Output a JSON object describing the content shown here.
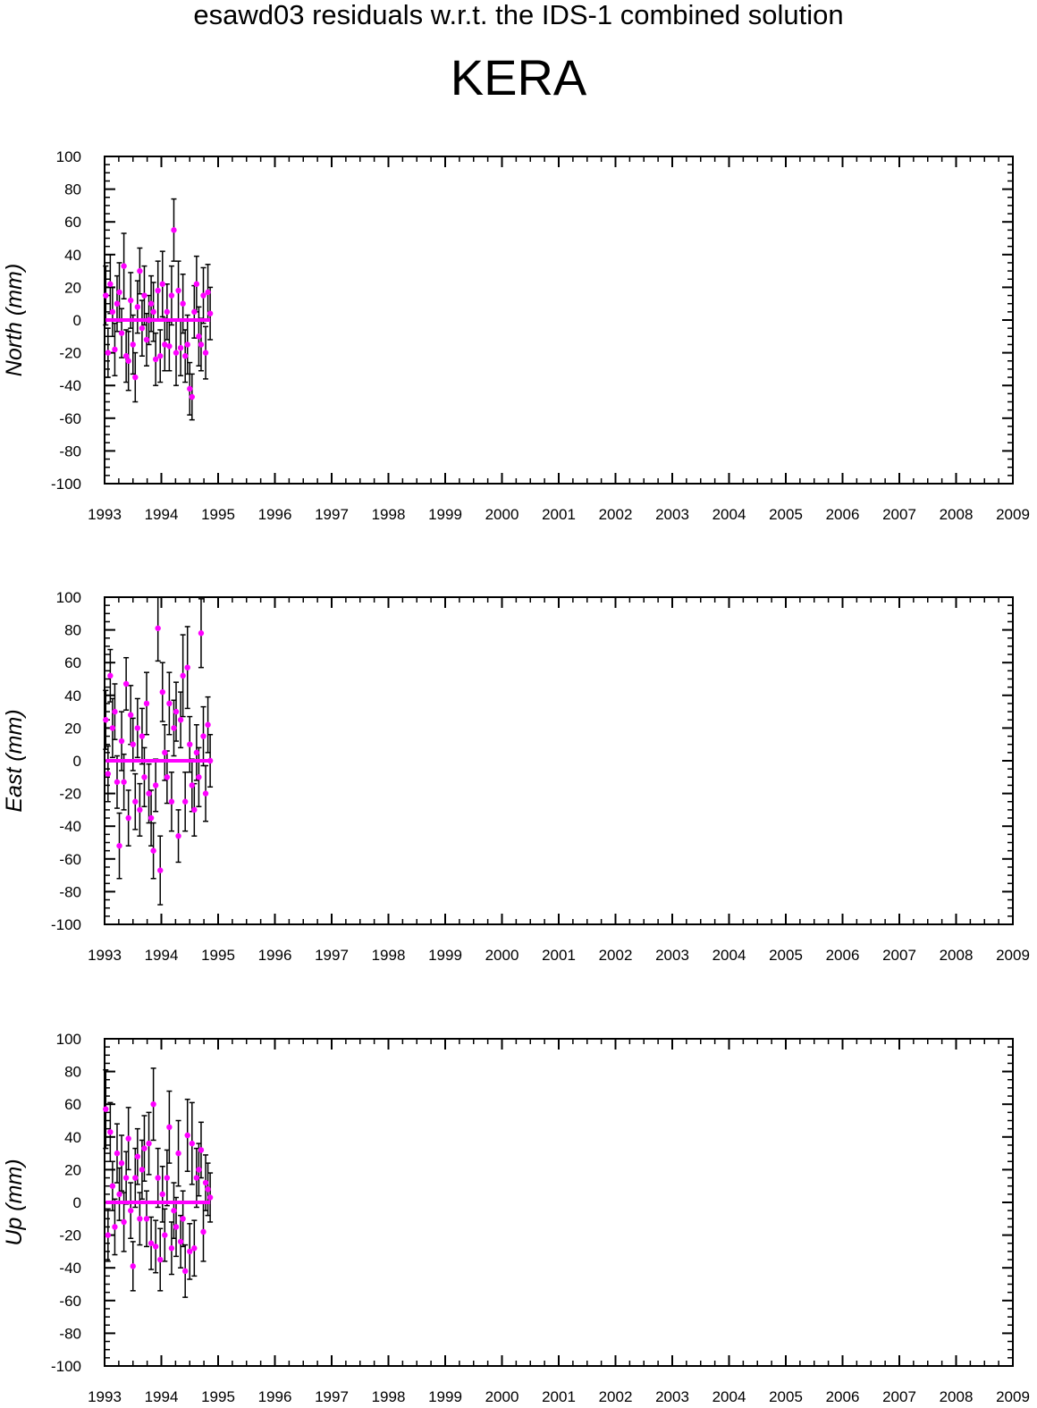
{
  "header": {
    "suptitle": "esawd03 residuals w.r.t. the IDS-1 combined solution",
    "station": "KERA"
  },
  "colors": {
    "point": "#ff00ff",
    "error_bar": "#000000",
    "axis": "#000000",
    "background": "#ffffff"
  },
  "chart_data": [
    {
      "type": "scatter",
      "component": "North",
      "ylabel": "North (mm)",
      "xlim": [
        1993,
        2009
      ],
      "ylim": [
        -100,
        100
      ],
      "xticks": [
        "1993",
        "1994",
        "1995",
        "1996",
        "1997",
        "1998",
        "1999",
        "2000",
        "2001",
        "2002",
        "2003",
        "2004",
        "2005",
        "2006",
        "2007",
        "2008",
        "2009"
      ],
      "yticks": [
        "100",
        "80",
        "60",
        "40",
        "20",
        "0",
        "-20",
        "-40",
        "-60",
        "-80",
        "-100"
      ],
      "grid": false,
      "series": [
        {
          "x": [
            1993.02,
            1993.06,
            1993.1,
            1993.14,
            1993.18,
            1993.22,
            1993.26,
            1993.3,
            1993.34,
            1993.38,
            1993.42,
            1993.46,
            1993.5,
            1993.54,
            1993.58,
            1993.62,
            1993.66,
            1993.7,
            1993.74,
            1993.78,
            1993.82,
            1993.86,
            1993.9,
            1993.94,
            1993.98,
            1994.02,
            1994.06,
            1994.1,
            1994.14,
            1994.18,
            1994.22,
            1994.26,
            1994.3,
            1994.34,
            1994.38,
            1994.42,
            1994.46,
            1994.5,
            1994.54,
            1994.58,
            1994.62,
            1994.66,
            1994.7,
            1994.74,
            1994.78,
            1994.82,
            1994.86
          ],
          "y": [
            15,
            -20,
            22,
            5,
            -18,
            10,
            17,
            -8,
            33,
            -22,
            -25,
            12,
            -15,
            -35,
            8,
            30,
            -5,
            15,
            -12,
            0,
            10,
            5,
            -24,
            18,
            -22,
            22,
            -15,
            5,
            -16,
            15,
            55,
            -20,
            18,
            -17,
            10,
            -22,
            -15,
            -42,
            -47,
            5,
            22,
            -10,
            -15,
            15,
            -20,
            17,
            4
          ],
          "err": [
            18,
            15,
            18,
            15,
            16,
            17,
            18,
            15,
            20,
            16,
            18,
            17,
            18,
            15,
            16,
            14,
            17,
            18,
            16,
            15,
            17,
            18,
            16,
            18,
            16,
            20,
            16,
            17,
            15,
            18,
            19,
            20,
            18,
            17,
            18,
            16,
            18,
            16,
            14,
            16,
            17,
            18,
            16,
            17,
            16,
            17,
            16
          ]
        }
      ]
    },
    {
      "type": "scatter",
      "component": "East",
      "ylabel": "East (mm)",
      "xlim": [
        1993,
        2009
      ],
      "ylim": [
        -100,
        100
      ],
      "xticks": [
        "1993",
        "1994",
        "1995",
        "1996",
        "1997",
        "1998",
        "1999",
        "2000",
        "2001",
        "2002",
        "2003",
        "2004",
        "2005",
        "2006",
        "2007",
        "2008",
        "2009"
      ],
      "yticks": [
        "100",
        "80",
        "60",
        "40",
        "20",
        "0",
        "-20",
        "-40",
        "-60",
        "-80",
        "-100"
      ],
      "grid": false,
      "series": [
        {
          "x": [
            1993.02,
            1993.06,
            1993.1,
            1993.14,
            1993.18,
            1993.22,
            1993.26,
            1993.3,
            1993.34,
            1993.38,
            1993.42,
            1993.46,
            1993.5,
            1993.54,
            1993.58,
            1993.62,
            1993.66,
            1993.7,
            1993.74,
            1993.78,
            1993.82,
            1993.86,
            1993.9,
            1993.94,
            1993.98,
            1994.02,
            1994.06,
            1994.1,
            1994.14,
            1994.18,
            1994.22,
            1994.26,
            1994.3,
            1994.34,
            1994.38,
            1994.42,
            1994.46,
            1994.5,
            1994.54,
            1994.58,
            1994.62,
            1994.66,
            1994.7,
            1994.74,
            1994.78,
            1994.82,
            1994.86
          ],
          "y": [
            25,
            -8,
            52,
            20,
            30,
            -13,
            -52,
            12,
            -13,
            47,
            -35,
            28,
            10,
            -25,
            20,
            -30,
            15,
            -10,
            35,
            -20,
            -35,
            -55,
            -15,
            81,
            -67,
            42,
            5,
            -10,
            35,
            -25,
            20,
            30,
            -46,
            25,
            52,
            -25,
            57,
            10,
            -15,
            -30,
            5,
            -10,
            78,
            15,
            -20,
            22,
            0
          ],
          "err": [
            18,
            17,
            16,
            18,
            17,
            16,
            20,
            18,
            17,
            16,
            17,
            18,
            16,
            17,
            18,
            16,
            17,
            18,
            19,
            18,
            17,
            17,
            16,
            20,
            21,
            18,
            17,
            16,
            19,
            18,
            17,
            18,
            16,
            17,
            25,
            18,
            25,
            17,
            16,
            16,
            17,
            18,
            21,
            18,
            17,
            17,
            16
          ]
        }
      ]
    },
    {
      "type": "scatter",
      "component": "Up",
      "ylabel": "Up (mm)",
      "xlim": [
        1993,
        2009
      ],
      "ylim": [
        -100,
        100
      ],
      "xticks": [
        "1993",
        "1994",
        "1995",
        "1996",
        "1997",
        "1998",
        "1999",
        "2000",
        "2001",
        "2002",
        "2003",
        "2004",
        "2005",
        "2006",
        "2007",
        "2008",
        "2009"
      ],
      "yticks": [
        "100",
        "80",
        "60",
        "40",
        "20",
        "0",
        "-20",
        "-40",
        "-60",
        "-80",
        "-100"
      ],
      "grid": false,
      "series": [
        {
          "x": [
            1993.02,
            1993.06,
            1993.1,
            1993.14,
            1993.18,
            1993.22,
            1993.26,
            1993.3,
            1993.34,
            1993.38,
            1993.42,
            1993.46,
            1993.5,
            1993.54,
            1993.58,
            1993.62,
            1993.66,
            1993.7,
            1993.74,
            1993.78,
            1993.82,
            1993.86,
            1993.9,
            1993.94,
            1993.98,
            1994.02,
            1994.06,
            1994.1,
            1994.14,
            1994.18,
            1994.22,
            1994.26,
            1994.3,
            1994.34,
            1994.38,
            1994.42,
            1994.46,
            1994.5,
            1994.54,
            1994.58,
            1994.62,
            1994.66,
            1994.7,
            1994.74,
            1994.78,
            1994.82,
            1994.86
          ],
          "y": [
            57,
            -20,
            43,
            10,
            -15,
            30,
            5,
            24,
            -12,
            15,
            39,
            -5,
            -39,
            15,
            28,
            -10,
            20,
            33,
            -10,
            36,
            -25,
            60,
            -27,
            15,
            -35,
            5,
            -20,
            15,
            46,
            -28,
            -5,
            -15,
            30,
            -24,
            -10,
            -42,
            41,
            -30,
            36,
            -28,
            15,
            20,
            32,
            -18,
            12,
            8,
            3
          ],
          "err": [
            24,
            16,
            18,
            15,
            17,
            18,
            16,
            17,
            18,
            16,
            19,
            17,
            15,
            18,
            17,
            16,
            18,
            20,
            17,
            19,
            16,
            22,
            16,
            18,
            19,
            17,
            16,
            17,
            22,
            16,
            17,
            18,
            20,
            16,
            17,
            16,
            22,
            17,
            25,
            17,
            18,
            16,
            17,
            18,
            17,
            16,
            15
          ]
        }
      ]
    }
  ]
}
